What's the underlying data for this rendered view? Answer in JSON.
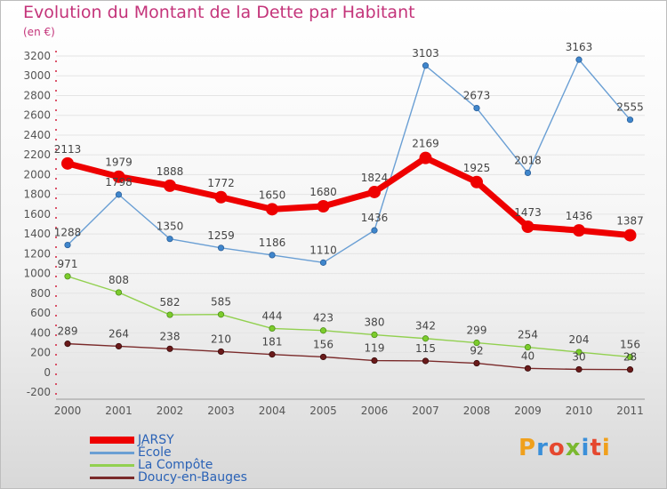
{
  "title": "Evolution du Montant de la Dette par Habitant",
  "unit": "(en €)",
  "brand": "Proxiti",
  "colors": {
    "title": "#c4347a",
    "legend_text": "#2a62b6",
    "axis_text": "#555555",
    "grid": "#e4e4e4",
    "tick_marks": "#d21f3c"
  },
  "chart_data": {
    "type": "line",
    "title": "Evolution du Montant de la Dette par Habitant",
    "ylabel": "(en €)",
    "xlabel": "",
    "x": [
      "2000",
      "2001",
      "2002",
      "2003",
      "2004",
      "2005",
      "2006",
      "2007",
      "2008",
      "2009",
      "2010",
      "2011"
    ],
    "ylim": [
      -200,
      3200
    ],
    "yticks": [
      -200,
      0,
      200,
      400,
      600,
      800,
      1000,
      1200,
      1400,
      1600,
      1800,
      2000,
      2200,
      2400,
      2600,
      2800,
      3000,
      3200
    ],
    "grid": true,
    "legend_position": "bottom-left",
    "series": [
      {
        "name": "JARSY",
        "color": "#ee0000",
        "values": [
          2113,
          1979,
          1888,
          1772,
          1650,
          1680,
          1824,
          2169,
          1925,
          1473,
          1436,
          1387
        ]
      },
      {
        "name": "École",
        "color": "#6a9fd4",
        "values": [
          1288,
          1798,
          1350,
          1259,
          1186,
          1110,
          1436,
          3103,
          2673,
          2018,
          3163,
          2555
        ]
      },
      {
        "name": "La Compôte",
        "color": "#92d050",
        "values": [
          971,
          808,
          582,
          585,
          444,
          423,
          380,
          342,
          299,
          254,
          204,
          156
        ]
      },
      {
        "name": "Doucy-en-Bauges",
        "color": "#7a2a2a",
        "values": [
          289,
          264,
          238,
          210,
          181,
          156,
          119,
          115,
          92,
          40,
          30,
          28
        ]
      }
    ]
  }
}
